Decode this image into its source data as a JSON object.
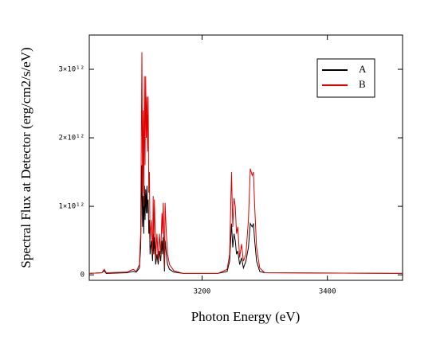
{
  "chart_data": {
    "type": "line",
    "x_label": "Photon Energy (eV)",
    "y_label": "Spectral Flux at Detector (erg/cm2/s/eV)",
    "x": [
      3020,
      3040,
      3044,
      3047,
      3080,
      3090,
      3095,
      3100,
      3102,
      3104,
      3105,
      3106,
      3107,
      3108,
      3109,
      3110,
      3111,
      3112,
      3113,
      3114,
      3115,
      3116,
      3117,
      3119,
      3121,
      3122,
      3123,
      3124,
      3126,
      3128,
      3130,
      3132,
      3134,
      3136,
      3137,
      3138,
      3140,
      3141,
      3143,
      3145,
      3148,
      3155,
      3170,
      3225,
      3240,
      3244,
      3247,
      3249,
      3251,
      3253,
      3255,
      3257,
      3260,
      3263,
      3266,
      3270,
      3274,
      3277,
      3280,
      3282,
      3284,
      3287,
      3292,
      3300,
      3520
    ],
    "series": [
      {
        "name": "A",
        "color": "#000000",
        "values": [
          20000000000.0,
          30000000000.0,
          60000000000.0,
          20000000000.0,
          30000000000.0,
          50000000000.0,
          40000000000.0,
          100000000000.0,
          400000000000.0,
          1600000000000.0,
          700000000000.0,
          1150000000000.0,
          600000000000.0,
          1300000000000.0,
          800000000000.0,
          1250000000000.0,
          900000000000.0,
          1300000000000.0,
          900000000000.0,
          1100000000000.0,
          600000000000.0,
          800000000000.0,
          300000000000.0,
          500000000000.0,
          200000000000.0,
          600000000000.0,
          300000000000.0,
          550000000000.0,
          150000000000.0,
          300000000000.0,
          150000000000.0,
          350000000000.0,
          200000000000.0,
          500000000000.0,
          300000000000.0,
          550000000000.0,
          50000000000.0,
          500000000000.0,
          300000000000.0,
          150000000000.0,
          80000000000.0,
          40000000000.0,
          20000000000.0,
          20000000000.0,
          50000000000.0,
          200000000000.0,
          750000000000.0,
          400000000000.0,
          600000000000.0,
          500000000000.0,
          300000000000.0,
          350000000000.0,
          150000000000.0,
          250000000000.0,
          100000000000.0,
          200000000000.0,
          400000000000.0,
          750000000000.0,
          700000000000.0,
          750000000000.0,
          500000000000.0,
          200000000000.0,
          50000000000.0,
          30000000000.0,
          20000000000.0
        ]
      },
      {
        "name": "B",
        "color": "#e00000",
        "values": [
          20000000000.0,
          30000000000.0,
          80000000000.0,
          30000000000.0,
          40000000000.0,
          80000000000.0,
          50000000000.0,
          150000000000.0,
          600000000000.0,
          3250000000000.0,
          1200000000000.0,
          2400000000000.0,
          1000000000000.0,
          2900000000000.0,
          1600000000000.0,
          2900000000000.0,
          2000000000000.0,
          2600000000000.0,
          1800000000000.0,
          2600000000000.0,
          1200000000000.0,
          1500000000000.0,
          500000000000.0,
          800000000000.0,
          300000000000.0,
          1150000000000.0,
          500000000000.0,
          1100000000000.0,
          250000000000.0,
          600000000000.0,
          200000000000.0,
          600000000000.0,
          300000000000.0,
          900000000000.0,
          600000000000.0,
          1050000000000.0,
          100000000000.0,
          1050000000000.0,
          600000000000.0,
          300000000000.0,
          150000000000.0,
          60000000000.0,
          20000000000.0,
          20000000000.0,
          80000000000.0,
          300000000000.0,
          1500000000000.0,
          700000000000.0,
          1120000000000.0,
          1000000000000.0,
          600000000000.0,
          700000000000.0,
          250000000000.0,
          450000000000.0,
          200000000000.0,
          300000000000.0,
          800000000000.0,
          1550000000000.0,
          1450000000000.0,
          1500000000000.0,
          1000000000000.0,
          400000000000.0,
          100000000000.0,
          30000000000.0,
          20000000000.0
        ]
      }
    ],
    "xlim": [
      3020,
      3520
    ],
    "xticks": [
      3200,
      3400
    ],
    "ylim": [
      -80000000000.0,
      3500000000000.0
    ],
    "yticks": [
      0,
      {
        "value": 1000000000000.0,
        "label": "1×10¹²"
      },
      {
        "value": 2000000000000.0,
        "label": "2×10¹²"
      },
      {
        "value": 3000000000000.0,
        "label": "3×10¹²"
      }
    ],
    "legend": "upper right"
  }
}
